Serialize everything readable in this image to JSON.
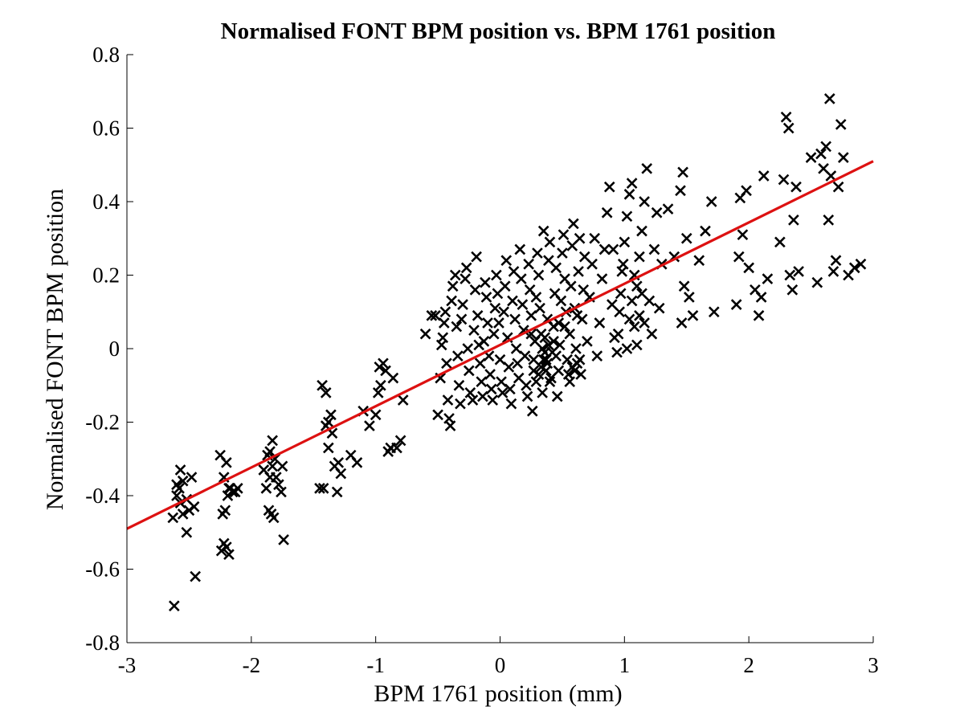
{
  "chart_data": {
    "type": "scatter",
    "title": "Normalised FONT BPM position vs. BPM 1761 position",
    "xlabel": "BPM 1761 position (mm)",
    "ylabel": "Normalised FONT BPM position",
    "xlim": [
      -3,
      3
    ],
    "ylim": [
      -0.8,
      0.8
    ],
    "xticks": [
      "-3",
      "-2",
      "-1",
      "0",
      "1",
      "2",
      "3"
    ],
    "yticks": [
      "0.8",
      "0.6",
      "0.4",
      "0.2",
      "0",
      "-0.2",
      "-0.4",
      "-0.6",
      "-0.8"
    ],
    "grid": false,
    "marker": "x",
    "colors": {
      "points": "#000000",
      "fit_line": "#dd1111"
    },
    "series": [
      {
        "type": "scatter",
        "points": [
          [
            -2.62,
            -0.7
          ],
          [
            -2.45,
            -0.62
          ],
          [
            -2.63,
            -0.46
          ],
          [
            -2.6,
            -0.37
          ],
          [
            -2.57,
            -0.33
          ],
          [
            -2.55,
            -0.36
          ],
          [
            -2.52,
            -0.41
          ],
          [
            -2.5,
            -0.44
          ],
          [
            -2.48,
            -0.35
          ],
          [
            -2.55,
            -0.45
          ],
          [
            -2.57,
            -0.42
          ],
          [
            -2.52,
            -0.5
          ],
          [
            -2.46,
            -0.43
          ],
          [
            -2.6,
            -0.4
          ],
          [
            -2.58,
            -0.38
          ],
          [
            -2.25,
            -0.29
          ],
          [
            -2.22,
            -0.35
          ],
          [
            -2.2,
            -0.31
          ],
          [
            -2.18,
            -0.38
          ],
          [
            -2.15,
            -0.39
          ],
          [
            -2.23,
            -0.45
          ],
          [
            -2.21,
            -0.44
          ],
          [
            -2.19,
            -0.4
          ],
          [
            -2.17,
            -0.38
          ],
          [
            -2.24,
            -0.55
          ],
          [
            -2.22,
            -0.53
          ],
          [
            -2.2,
            -0.54
          ],
          [
            -2.18,
            -0.56
          ],
          [
            -2.13,
            -0.39
          ],
          [
            -2.11,
            -0.38
          ],
          [
            -1.88,
            -0.38
          ],
          [
            -1.85,
            -0.35
          ],
          [
            -1.83,
            -0.32
          ],
          [
            -1.86,
            -0.44
          ],
          [
            -1.84,
            -0.45
          ],
          [
            -1.82,
            -0.46
          ],
          [
            -1.8,
            -0.35
          ],
          [
            -1.78,
            -0.37
          ],
          [
            -1.76,
            -0.39
          ],
          [
            -1.74,
            -0.52
          ],
          [
            -1.87,
            -0.29
          ],
          [
            -1.85,
            -0.28
          ],
          [
            -1.83,
            -0.25
          ],
          [
            -1.81,
            -0.3
          ],
          [
            -1.9,
            -0.33
          ],
          [
            -1.75,
            -0.32
          ],
          [
            -1.45,
            -0.38
          ],
          [
            -1.43,
            -0.1
          ],
          [
            -1.4,
            -0.12
          ],
          [
            -1.42,
            -0.38
          ],
          [
            -1.4,
            -0.21
          ],
          [
            -1.38,
            -0.2
          ],
          [
            -1.36,
            -0.18
          ],
          [
            -1.38,
            -0.27
          ],
          [
            -1.35,
            -0.23
          ],
          [
            -1.33,
            -0.32
          ],
          [
            -1.3,
            -0.31
          ],
          [
            -1.31,
            -0.39
          ],
          [
            -1.28,
            -0.34
          ],
          [
            -1.2,
            -0.29
          ],
          [
            -1.15,
            -0.31
          ],
          [
            -1.1,
            -0.17
          ],
          [
            -1.05,
            -0.21
          ],
          [
            -1.0,
            -0.18
          ],
          [
            -0.98,
            -0.12
          ],
          [
            -0.97,
            -0.05
          ],
          [
            -0.96,
            -0.1
          ],
          [
            -0.94,
            -0.04
          ],
          [
            -0.92,
            -0.06
          ],
          [
            -0.9,
            -0.28
          ],
          [
            -0.88,
            -0.27
          ],
          [
            -0.86,
            -0.08
          ],
          [
            -0.83,
            -0.27
          ],
          [
            -0.8,
            -0.25
          ],
          [
            -0.78,
            -0.14
          ],
          [
            -0.5,
            -0.18
          ],
          [
            -0.48,
            -0.08
          ],
          [
            -0.47,
            0.01
          ],
          [
            -0.46,
            0.03
          ],
          [
            -0.45,
            0.07
          ],
          [
            -0.44,
            0.1
          ],
          [
            -0.43,
            -0.04
          ],
          [
            -0.42,
            -0.14
          ],
          [
            -0.41,
            -0.19
          ],
          [
            -0.4,
            -0.21
          ],
          [
            -0.39,
            0.13
          ],
          [
            -0.38,
            0.17
          ],
          [
            -0.36,
            0.2
          ],
          [
            -0.35,
            0.06
          ],
          [
            -0.34,
            -0.02
          ],
          [
            -0.33,
            -0.1
          ],
          [
            -0.32,
            -0.15
          ],
          [
            -0.31,
            0.08
          ],
          [
            -0.3,
            0.12
          ],
          [
            -0.28,
            0.19
          ],
          [
            -0.27,
            0.22
          ],
          [
            -0.26,
            0.0
          ],
          [
            -0.25,
            -0.06
          ],
          [
            -0.24,
            -0.12
          ],
          [
            -0.22,
            -0.14
          ],
          [
            -0.21,
            0.05
          ],
          [
            -0.2,
            0.16
          ],
          [
            -0.19,
            0.25
          ],
          [
            -0.18,
            0.09
          ],
          [
            -0.17,
            0.01
          ],
          [
            -0.16,
            -0.04
          ],
          [
            -0.15,
            -0.09
          ],
          [
            -0.14,
            -0.13
          ],
          [
            -0.13,
            0.02
          ],
          [
            -0.12,
            0.18
          ],
          [
            -0.11,
            0.14
          ],
          [
            -0.1,
            0.07
          ],
          [
            -0.09,
            -0.02
          ],
          [
            -0.08,
            -0.07
          ],
          [
            -0.07,
            -0.11
          ],
          [
            -0.06,
            -0.14
          ],
          [
            -0.05,
            0.04
          ],
          [
            -0.04,
            0.11
          ],
          [
            -0.03,
            0.2
          ],
          [
            -0.02,
            0.15
          ],
          [
            -0.01,
            0.07
          ],
          [
            0.0,
            -0.03
          ],
          [
            0.01,
            -0.09
          ],
          [
            0.02,
            -0.12
          ],
          [
            0.03,
            0.1
          ],
          [
            0.04,
            0.17
          ],
          [
            0.05,
            0.24
          ],
          [
            0.06,
            0.03
          ],
          [
            0.07,
            -0.05
          ],
          [
            0.08,
            -0.11
          ],
          [
            0.09,
            -0.15
          ],
          [
            0.1,
            0.13
          ],
          [
            0.11,
            0.21
          ],
          [
            0.12,
            0.08
          ],
          [
            0.13,
            0.0
          ],
          [
            0.14,
            -0.04
          ],
          [
            0.15,
            -0.08
          ],
          [
            0.16,
            0.27
          ],
          [
            0.17,
            0.19
          ],
          [
            0.18,
            0.12
          ],
          [
            0.19,
            0.05
          ],
          [
            0.2,
            -0.02
          ],
          [
            0.21,
            -0.1
          ],
          [
            0.22,
            -0.13
          ],
          [
            0.23,
            0.23
          ],
          [
            0.24,
            0.16
          ],
          [
            0.25,
            0.09
          ],
          [
            0.26,
            -0.17
          ],
          [
            0.27,
            -0.06
          ],
          [
            0.28,
            0.02
          ],
          [
            0.29,
            0.14
          ],
          [
            0.3,
            0.26
          ],
          [
            0.31,
            0.2
          ],
          [
            0.32,
            0.11
          ],
          [
            0.33,
            -0.05
          ],
          [
            0.34,
            -0.12
          ],
          [
            0.35,
            0.32
          ],
          [
            0.36,
            0.03
          ],
          [
            0.37,
            -0.03
          ],
          [
            0.38,
            0.08
          ],
          [
            0.39,
            0.24
          ],
          [
            0.4,
            0.29
          ],
          [
            0.41,
            -0.08
          ],
          [
            0.42,
            -0.01
          ],
          [
            0.43,
            0.06
          ],
          [
            0.44,
            0.15
          ],
          [
            0.45,
            0.22
          ],
          [
            0.46,
            -0.13
          ],
          [
            0.47,
            -0.06
          ],
          [
            0.48,
            0.01
          ],
          [
            0.49,
            0.13
          ],
          [
            0.5,
            0.26
          ],
          [
            0.51,
            0.31
          ],
          [
            0.52,
            0.19
          ],
          [
            0.53,
            0.1
          ],
          [
            0.54,
            -0.03
          ],
          [
            0.55,
            -0.07
          ],
          [
            0.56,
            0.04
          ],
          [
            0.57,
            0.17
          ],
          [
            0.58,
            0.28
          ],
          [
            0.59,
            0.34
          ],
          [
            0.6,
            0.11
          ],
          [
            0.61,
            0.0
          ],
          [
            0.62,
            -0.04
          ],
          [
            0.63,
            0.21
          ],
          [
            0.64,
            0.3
          ],
          [
            0.65,
            -0.07
          ],
          [
            0.66,
            0.08
          ],
          [
            0.67,
            0.16
          ],
          [
            0.68,
            0.25
          ],
          [
            0.7,
            0.02
          ],
          [
            0.72,
            0.14
          ],
          [
            0.74,
            0.23
          ],
          [
            0.76,
            0.3
          ],
          [
            0.78,
            -0.02
          ],
          [
            0.8,
            0.07
          ],
          [
            0.82,
            0.19
          ],
          [
            0.84,
            0.27
          ],
          [
            0.86,
            0.37
          ],
          [
            0.88,
            0.44
          ],
          [
            0.9,
            0.12
          ],
          [
            0.92,
            0.03
          ],
          [
            0.94,
            -0.01
          ],
          [
            0.96,
            0.1
          ],
          [
            0.98,
            0.21
          ],
          [
            1.0,
            0.29
          ],
          [
            1.02,
            0.36
          ],
          [
            1.04,
            0.42
          ],
          [
            1.06,
            0.45
          ],
          [
            1.08,
            0.06
          ],
          [
            1.1,
            0.17
          ],
          [
            1.12,
            0.25
          ],
          [
            1.14,
            0.32
          ],
          [
            1.16,
            0.4
          ],
          [
            1.18,
            0.49
          ],
          [
            1.2,
            0.13
          ],
          [
            1.22,
            0.04
          ],
          [
            1.24,
            0.27
          ],
          [
            1.26,
            0.37
          ],
          [
            1.28,
            0.11
          ],
          [
            1.3,
            0.23
          ],
          [
            1.35,
            0.38
          ],
          [
            1.4,
            0.25
          ],
          [
            1.45,
            0.43
          ],
          [
            1.47,
            0.48
          ],
          [
            1.48,
            0.17
          ],
          [
            1.5,
            0.3
          ],
          [
            1.52,
            0.14
          ],
          [
            1.55,
            0.09
          ],
          [
            1.46,
            0.07
          ],
          [
            1.6,
            0.24
          ],
          [
            1.65,
            0.32
          ],
          [
            1.7,
            0.4
          ],
          [
            1.72,
            0.1
          ],
          [
            1.9,
            0.12
          ],
          [
            1.92,
            0.25
          ],
          [
            1.95,
            0.31
          ],
          [
            1.93,
            0.41
          ],
          [
            1.98,
            0.43
          ],
          [
            2.0,
            0.22
          ],
          [
            2.05,
            0.16
          ],
          [
            2.08,
            0.09
          ],
          [
            2.1,
            0.14
          ],
          [
            2.12,
            0.47
          ],
          [
            2.15,
            0.19
          ],
          [
            2.25,
            0.29
          ],
          [
            2.28,
            0.46
          ],
          [
            2.3,
            0.63
          ],
          [
            2.32,
            0.6
          ],
          [
            2.33,
            0.2
          ],
          [
            2.35,
            0.16
          ],
          [
            2.36,
            0.35
          ],
          [
            2.38,
            0.44
          ],
          [
            2.4,
            0.21
          ],
          [
            2.5,
            0.52
          ],
          [
            2.55,
            0.18
          ],
          [
            2.58,
            0.53
          ],
          [
            2.6,
            0.49
          ],
          [
            2.62,
            0.55
          ],
          [
            2.64,
            0.35
          ],
          [
            2.65,
            0.68
          ],
          [
            2.66,
            0.47
          ],
          [
            2.68,
            0.21
          ],
          [
            2.7,
            0.24
          ],
          [
            2.72,
            0.44
          ],
          [
            2.74,
            0.61
          ],
          [
            2.76,
            0.52
          ],
          [
            2.8,
            0.2
          ],
          [
            2.85,
            0.22
          ],
          [
            2.9,
            0.23
          ],
          [
            -0.52,
            0.09
          ],
          [
            -0.55,
            0.09
          ],
          [
            -0.6,
            0.04
          ],
          [
            0.36,
            -0.01
          ],
          [
            0.37,
            -0.06
          ],
          [
            0.35,
            -0.03
          ],
          [
            0.38,
            -0.04
          ],
          [
            0.34,
            0.0
          ],
          [
            0.33,
            0.04
          ],
          [
            0.39,
            0.01
          ],
          [
            0.31,
            -0.07
          ],
          [
            0.4,
            -0.09
          ],
          [
            0.43,
            0.02
          ],
          [
            0.29,
            -0.09
          ],
          [
            0.27,
            -0.03
          ],
          [
            0.45,
            -0.02
          ],
          [
            0.47,
            0.07
          ],
          [
            0.25,
            0.04
          ],
          [
            0.52,
            0.06
          ],
          [
            0.56,
            -0.09
          ],
          [
            0.58,
            -0.05
          ],
          [
            0.6,
            -0.06
          ],
          [
            0.62,
            0.09
          ],
          [
            0.64,
            -0.03
          ],
          [
            1.02,
            0.0
          ],
          [
            1.04,
            0.08
          ],
          [
            1.06,
            0.13
          ],
          [
            1.08,
            0.2
          ],
          [
            1.1,
            0.01
          ],
          [
            1.12,
            0.09
          ],
          [
            1.14,
            0.15
          ],
          [
            1.16,
            0.07
          ],
          [
            0.95,
            0.04
          ],
          [
            0.97,
            0.15
          ],
          [
            0.99,
            0.23
          ],
          [
            0.91,
            0.27
          ]
        ]
      },
      {
        "type": "line",
        "x": [
          -3,
          3
        ],
        "y": [
          -0.49,
          0.51
        ]
      }
    ]
  }
}
